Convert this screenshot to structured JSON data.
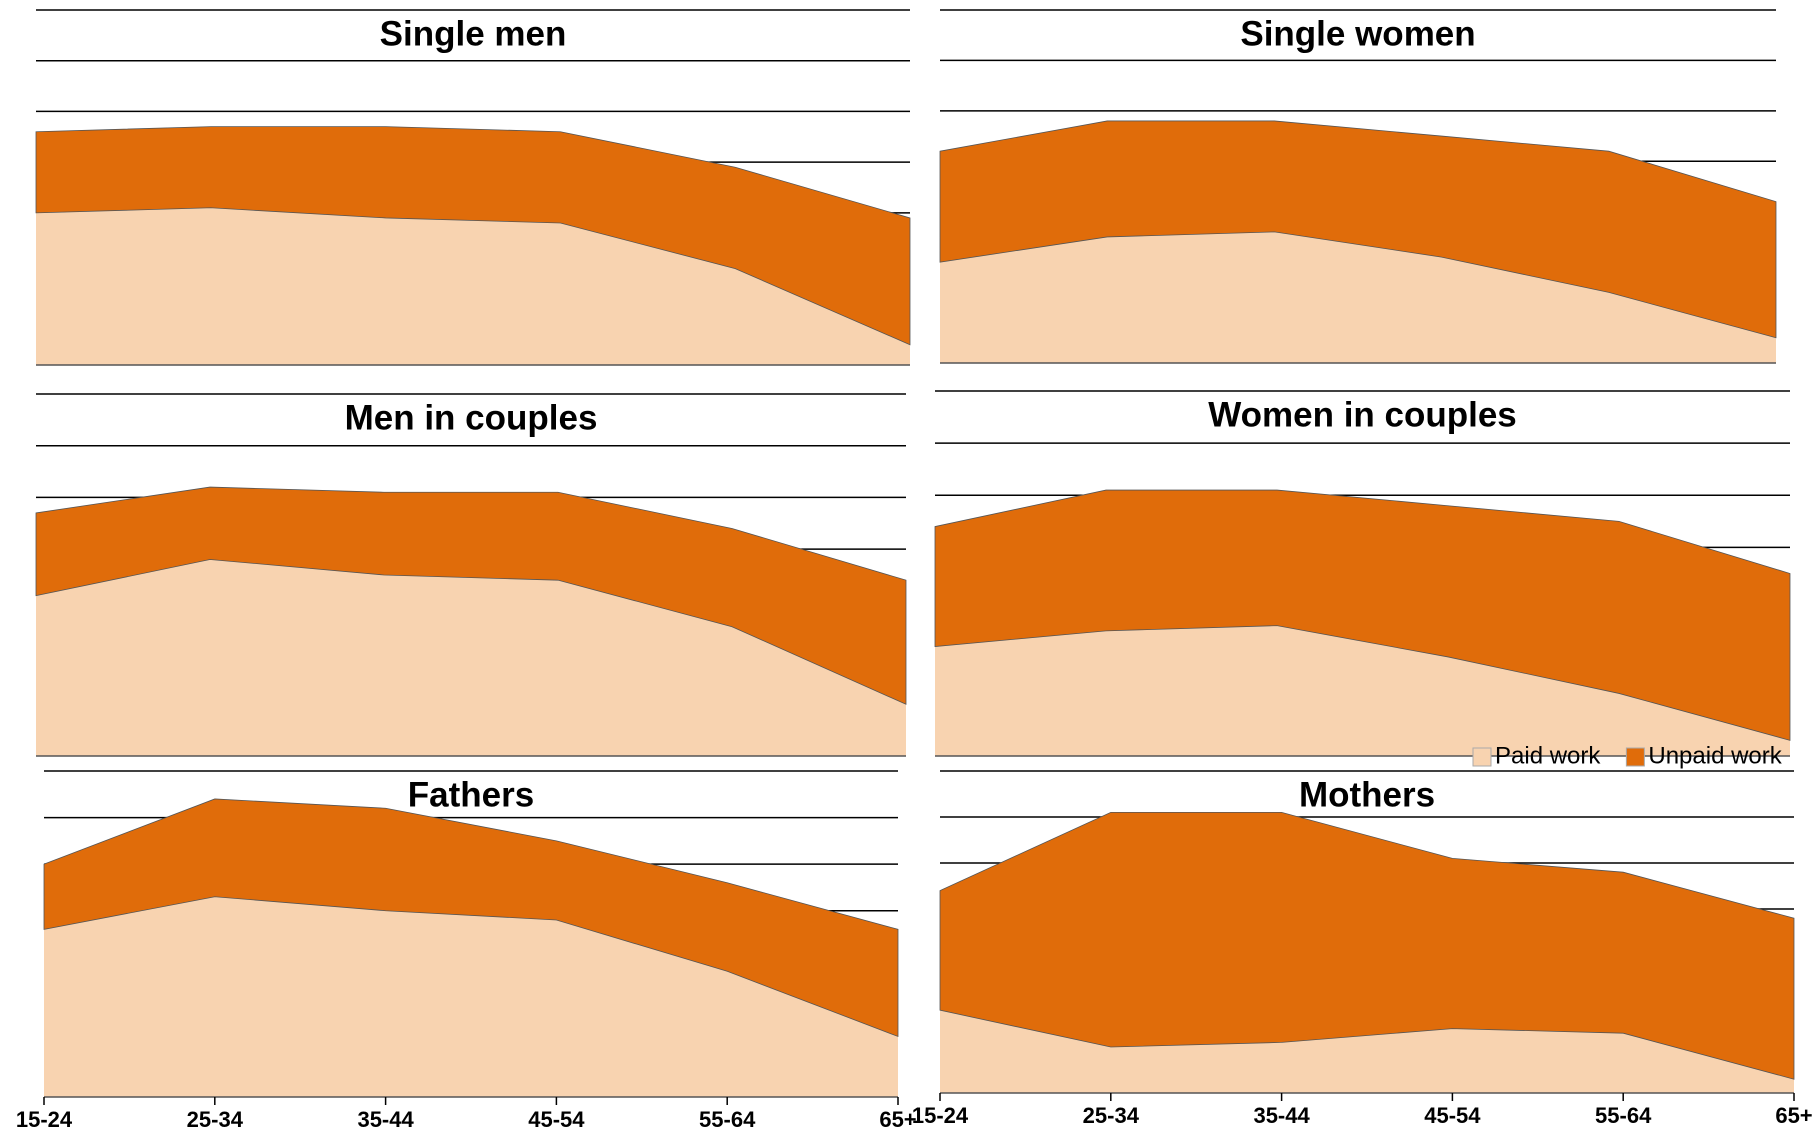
{
  "chart_data": [
    {
      "type": "area",
      "stacked": true,
      "title": "Single men",
      "categories": [
        "15-24",
        "25-34",
        "35-44",
        "45-54",
        "55-64",
        "65+"
      ],
      "ylim": [
        0,
        7
      ],
      "yticks": [
        1,
        2,
        3,
        4,
        5,
        6,
        7
      ],
      "grid": true,
      "series": [
        {
          "name": "Paid work",
          "color": "#f8d3b0",
          "values": [
            3.0,
            3.1,
            2.9,
            2.8,
            1.9,
            0.4
          ]
        },
        {
          "name": "Unpaid work",
          "color": "#e06c0a",
          "values": [
            1.6,
            1.6,
            1.8,
            1.8,
            2.0,
            2.5
          ]
        }
      ]
    },
    {
      "type": "area",
      "stacked": true,
      "title": "Single women",
      "categories": [
        "15-24",
        "25-34",
        "35-44",
        "45-54",
        "55-64",
        "65+"
      ],
      "ylim": [
        0,
        7
      ],
      "yticks": [
        1,
        2,
        3,
        4,
        5,
        6,
        7
      ],
      "grid": true,
      "series": [
        {
          "name": "Paid work",
          "color": "#f8d3b0",
          "values": [
            2.0,
            2.5,
            2.6,
            2.1,
            1.4,
            0.5
          ]
        },
        {
          "name": "Unpaid work",
          "color": "#e06c0a",
          "values": [
            2.2,
            2.3,
            2.2,
            2.4,
            2.8,
            2.7
          ]
        }
      ]
    },
    {
      "type": "area",
      "stacked": true,
      "title": "Men in  couples",
      "categories": [
        "15-24",
        "25-34",
        "35-44",
        "45-54",
        "55-64",
        "65+"
      ],
      "ylim": [
        0,
        7
      ],
      "yticks": [
        1,
        2,
        3,
        4,
        5,
        6,
        7
      ],
      "grid": true,
      "series": [
        {
          "name": "Paid work",
          "color": "#f8d3b0",
          "values": [
            3.1,
            3.8,
            3.5,
            3.4,
            2.5,
            1.0
          ]
        },
        {
          "name": "Unpaid work",
          "color": "#e06c0a",
          "values": [
            1.6,
            1.4,
            1.6,
            1.7,
            1.9,
            2.4
          ]
        }
      ]
    },
    {
      "type": "area",
      "stacked": true,
      "title": "Women in couples",
      "categories": [
        "15-24",
        "25-34",
        "35-44",
        "45-54",
        "55-64",
        "65+"
      ],
      "ylim": [
        0,
        7
      ],
      "yticks": [
        1,
        2,
        3,
        4,
        5,
        6,
        7
      ],
      "grid": true,
      "legend": "bottom-right",
      "series": [
        {
          "name": "Paid work",
          "color": "#f8d3b0",
          "values": [
            2.1,
            2.4,
            2.5,
            1.9,
            1.2,
            0.3
          ]
        },
        {
          "name": "Unpaid work",
          "color": "#e06c0a",
          "values": [
            2.3,
            2.7,
            2.6,
            2.9,
            3.3,
            3.2
          ]
        }
      ]
    },
    {
      "type": "area",
      "stacked": true,
      "title": "Fathers",
      "categories": [
        "15-24",
        "25-34",
        "35-44",
        "45-54",
        "55-64",
        "65+"
      ],
      "ylim": [
        0,
        7
      ],
      "yticks": [
        1,
        2,
        3,
        4,
        5,
        6,
        7
      ],
      "grid": true,
      "series": [
        {
          "name": "Paid work",
          "color": "#f8d3b0",
          "values": [
            3.6,
            4.3,
            4.0,
            3.8,
            2.7,
            1.3
          ]
        },
        {
          "name": "Unpaid work",
          "color": "#e06c0a",
          "values": [
            1.4,
            2.1,
            2.2,
            1.7,
            1.9,
            2.3
          ]
        }
      ]
    },
    {
      "type": "area",
      "stacked": true,
      "title": "Mothers",
      "categories": [
        "15-24",
        "25-34",
        "35-44",
        "45-54",
        "55-64",
        "65+"
      ],
      "ylim": [
        0,
        7
      ],
      "yticks": [
        1,
        2,
        3,
        4,
        5,
        6,
        7
      ],
      "grid": true,
      "series": [
        {
          "name": "Paid work",
          "color": "#f8d3b0",
          "values": [
            1.8,
            1.0,
            1.1,
            1.4,
            1.3,
            0.3
          ]
        },
        {
          "name": "Unpaid work",
          "color": "#e06c0a",
          "values": [
            2.6,
            5.1,
            5.0,
            3.7,
            3.5,
            3.5
          ]
        }
      ]
    }
  ]
}
